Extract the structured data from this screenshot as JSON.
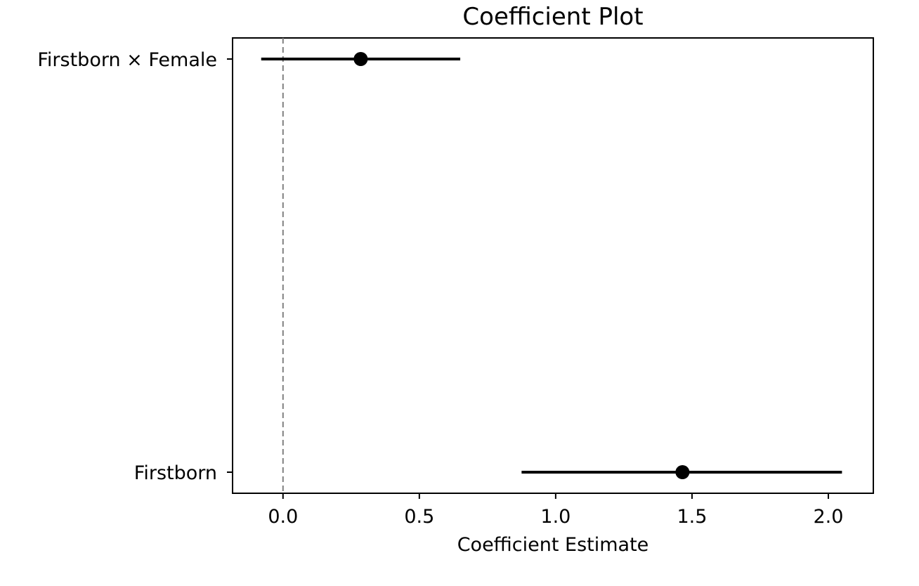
{
  "chart_data": {
    "type": "scatter",
    "title": "Coefficient Plot",
    "xlabel": "Coefficient Estimate",
    "ylabel": "",
    "xlim": [
      -0.185,
      2.165
    ],
    "xticks": [
      0.0,
      0.5,
      1.0,
      1.5,
      2.0
    ],
    "xtick_labels": [
      "0.0",
      "0.5",
      "1.0",
      "1.5",
      "2.0"
    ],
    "categories": [
      "Firstborn × Female",
      "Firstborn"
    ],
    "points": [
      {
        "label": "Firstborn × Female",
        "estimate": 0.285,
        "ci_low": -0.08,
        "ci_high": 0.65
      },
      {
        "label": "Firstborn",
        "estimate": 1.465,
        "ci_low": 0.875,
        "ci_high": 2.05
      }
    ],
    "reference_line": {
      "x": 0.0,
      "style": "dashed",
      "color": "#808080"
    },
    "marker_color": "#000000",
    "grid": false,
    "legend": false
  }
}
